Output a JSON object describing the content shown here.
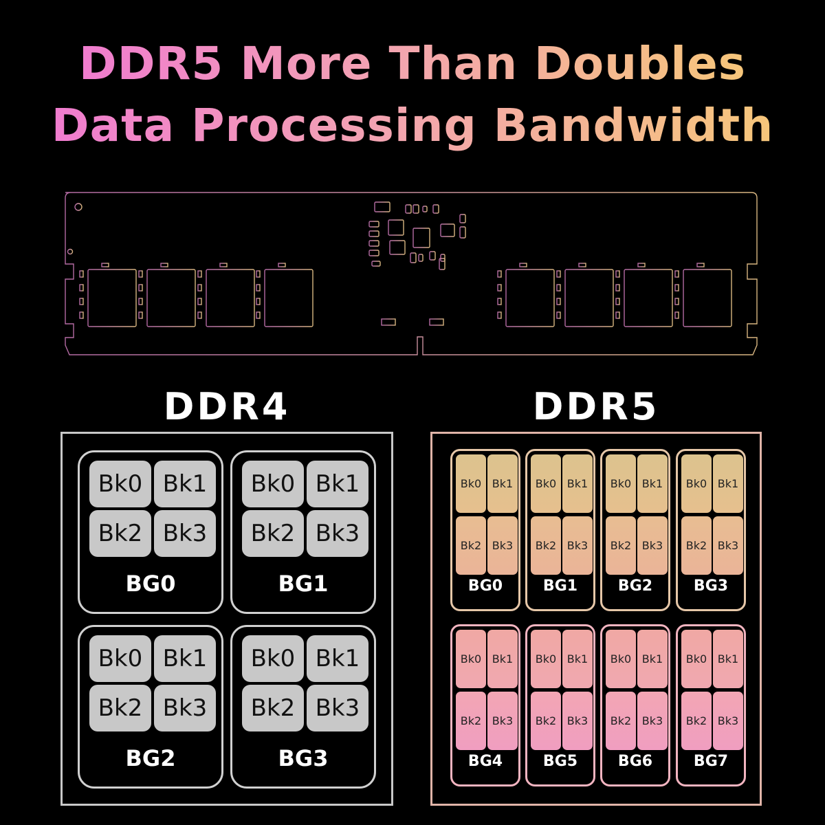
{
  "headline": {
    "line1": "DDR5 More Than Doubles",
    "line2": "Data Processing Bandwidth"
  },
  "ddr4": {
    "title": "DDR4",
    "groups": [
      {
        "label": "BG0",
        "banks": [
          "Bk0",
          "Bk1",
          "Bk2",
          "Bk3"
        ]
      },
      {
        "label": "BG1",
        "banks": [
          "Bk0",
          "Bk1",
          "Bk2",
          "Bk3"
        ]
      },
      {
        "label": "BG2",
        "banks": [
          "Bk0",
          "Bk1",
          "Bk2",
          "Bk3"
        ]
      },
      {
        "label": "BG3",
        "banks": [
          "Bk0",
          "Bk1",
          "Bk2",
          "Bk3"
        ]
      }
    ]
  },
  "ddr5": {
    "title": "DDR5",
    "groups": [
      {
        "label": "BG0",
        "banks": [
          "Bk0",
          "Bk1",
          "Bk2",
          "Bk3"
        ]
      },
      {
        "label": "BG1",
        "banks": [
          "Bk0",
          "Bk1",
          "Bk2",
          "Bk3"
        ]
      },
      {
        "label": "BG2",
        "banks": [
          "Bk0",
          "Bk1",
          "Bk2",
          "Bk3"
        ]
      },
      {
        "label": "BG3",
        "banks": [
          "Bk0",
          "Bk1",
          "Bk2",
          "Bk3"
        ]
      },
      {
        "label": "BG4",
        "banks": [
          "Bk0",
          "Bk1",
          "Bk2",
          "Bk3"
        ]
      },
      {
        "label": "BG5",
        "banks": [
          "Bk0",
          "Bk1",
          "Bk2",
          "Bk3"
        ]
      },
      {
        "label": "BG6",
        "banks": [
          "Bk0",
          "Bk1",
          "Bk2",
          "Bk3"
        ]
      },
      {
        "label": "BG7",
        "banks": [
          "Bk0",
          "Bk1",
          "Bk2",
          "Bk3"
        ]
      }
    ]
  },
  "colors": {
    "background": "#000000",
    "ddr4_bank": "#c8c8c8",
    "ddr5_top_bank": "#e3bf8a",
    "ddr5_bottom_bank": "#f0a0b0",
    "ddr5_border": "#e0b4a8",
    "pcb_outline_left": "#b06aa0",
    "pcb_outline_right": "#d4b27a"
  }
}
